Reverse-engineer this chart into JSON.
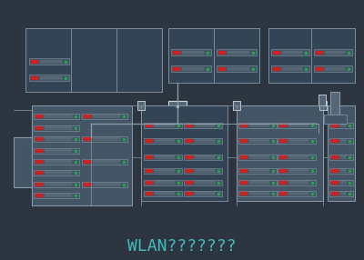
{
  "bg_color": "#2d3540",
  "line_color": "#8899aa",
  "red_color": "#cc2222",
  "green_color": "#22aa44",
  "cyan_color": "#44cccc",
  "white_color": "#ccdddd",
  "gray_color": "#667788",
  "dark_gray": "#445566",
  "title_text": "WLAN???????",
  "title_color": "#44cccc",
  "title_fontsize": 13,
  "fig_width": 4.0,
  "fig_height": 2.86,
  "dpi": 100
}
